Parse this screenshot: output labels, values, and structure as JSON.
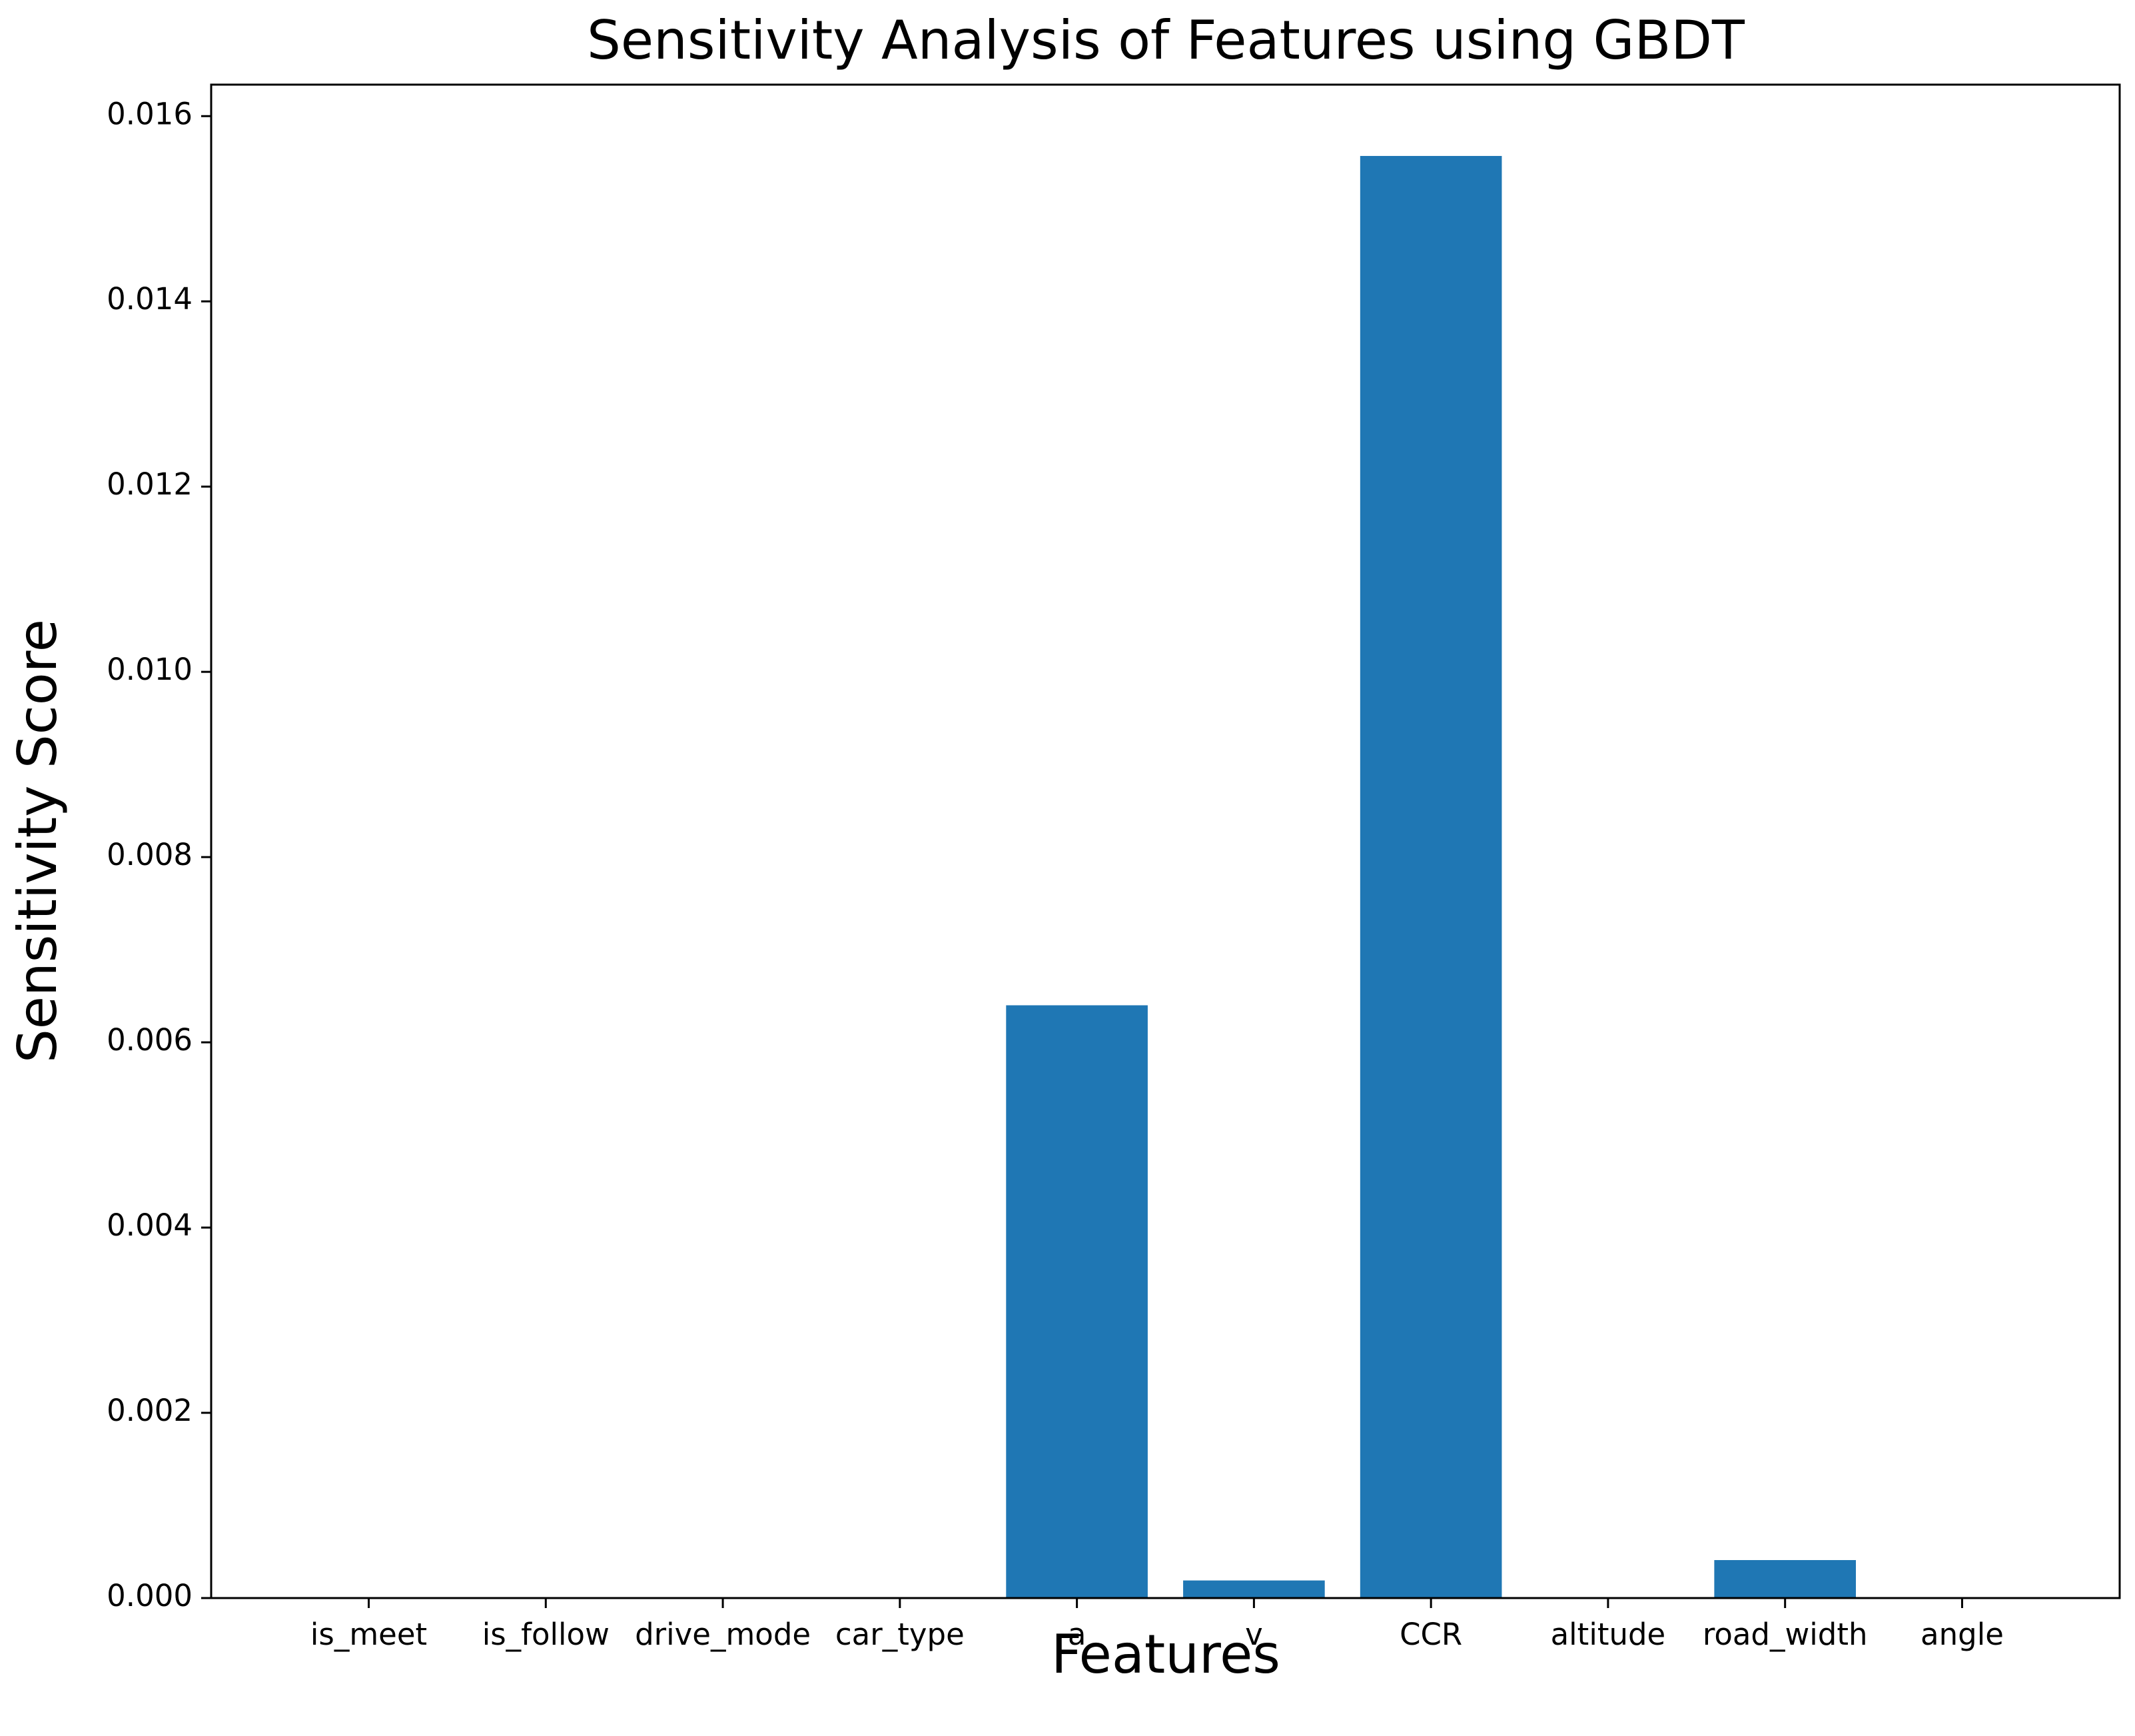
{
  "chart_data": {
    "type": "bar",
    "title": "Sensitivity Analysis of Features using GBDT",
    "x_label": "Features",
    "y_label": "Sensitivity Score",
    "categories": [
      "is_meet",
      "is_follow",
      "drive_mode",
      "car_type",
      "a",
      "v",
      "CCR",
      "altitude",
      "road_width",
      "angle"
    ],
    "values": [
      0,
      0,
      0,
      0,
      0.0064,
      0.00019,
      0.01557,
      0,
      0.00041,
      0
    ],
    "color": "#1f77b4",
    "ylim": [
      0,
      0.01634
    ],
    "yticks": [
      {
        "value": 0,
        "label": "0.000"
      },
      0.002,
      0.004,
      0.006,
      0.008,
      {
        "value": 0.01,
        "label": "0.010"
      },
      0.012,
      0.014,
      0.016
    ],
    "grid": false
  }
}
